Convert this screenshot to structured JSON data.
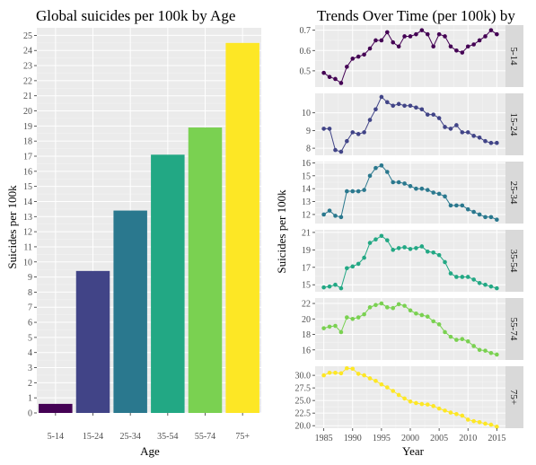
{
  "chart_data": [
    {
      "type": "bar",
      "title": "Global suicides per 100k by Age",
      "xlabel": "Age",
      "ylabel": "Suicides per 100k",
      "categories": [
        "5-14",
        "15-24",
        "25-34",
        "35-54",
        "55-74",
        "75+"
      ],
      "values": [
        0.6,
        9.4,
        13.4,
        17.1,
        18.9,
        24.5
      ],
      "colors": [
        "#440154",
        "#414487",
        "#2a788e",
        "#22a884",
        "#7ad151",
        "#fde725"
      ],
      "ylim": [
        0,
        25.5
      ],
      "yticks": [
        0,
        1,
        2,
        3,
        4,
        5,
        6,
        7,
        8,
        9,
        10,
        11,
        12,
        13,
        14,
        15,
        16,
        17,
        18,
        19,
        20,
        21,
        22,
        23,
        24,
        25
      ],
      "grid": true
    },
    {
      "type": "line",
      "title": "Trends Over Time (per 100k) by",
      "xlabel": "Year",
      "ylabel": "Suicides per 100k",
      "x": [
        1985,
        1986,
        1987,
        1988,
        1989,
        1990,
        1991,
        1992,
        1993,
        1994,
        1995,
        1996,
        1997,
        1998,
        1999,
        2000,
        2001,
        2002,
        2003,
        2004,
        2005,
        2006,
        2007,
        2008,
        2009,
        2010,
        2011,
        2012,
        2013,
        2014,
        2015
      ],
      "xticks": [
        1985,
        1990,
        1995,
        2000,
        2005,
        2010,
        2015
      ],
      "xlim": [
        1983.5,
        2016.5
      ],
      "grid": true,
      "series": [
        {
          "name": "5-14",
          "color": "#440154",
          "values": [
            0.49,
            0.47,
            0.46,
            0.44,
            0.52,
            0.56,
            0.57,
            0.58,
            0.61,
            0.65,
            0.65,
            0.69,
            0.64,
            0.62,
            0.67,
            0.67,
            0.68,
            0.7,
            0.68,
            0.62,
            0.68,
            0.67,
            0.62,
            0.6,
            0.59,
            0.62,
            0.63,
            0.65,
            0.67,
            0.7,
            0.68
          ],
          "ylim": [
            0.42,
            0.725
          ],
          "yticks": [
            0.5,
            0.6,
            0.7
          ],
          "ytick_labels": [
            "0.5",
            "0.6",
            "0.7"
          ]
        },
        {
          "name": "15-24",
          "color": "#414487",
          "values": [
            9.1,
            9.1,
            7.9,
            7.8,
            8.4,
            8.9,
            8.8,
            8.9,
            9.6,
            10.2,
            10.9,
            10.6,
            10.4,
            10.5,
            10.4,
            10.4,
            10.3,
            10.2,
            9.9,
            9.9,
            9.7,
            9.2,
            9.1,
            9.3,
            8.9,
            8.9,
            8.7,
            8.6,
            8.4,
            8.3,
            8.3
          ],
          "ylim": [
            7.6,
            11.1
          ],
          "yticks": [
            8,
            9,
            10
          ],
          "ytick_labels": [
            "8",
            "9",
            "10"
          ]
        },
        {
          "name": "25-34",
          "color": "#2a788e",
          "values": [
            12.0,
            12.3,
            11.9,
            11.8,
            13.8,
            13.8,
            13.8,
            13.9,
            15.0,
            15.6,
            15.8,
            15.3,
            14.5,
            14.5,
            14.4,
            14.2,
            14.0,
            14.0,
            13.9,
            13.7,
            13.6,
            13.4,
            12.7,
            12.7,
            12.7,
            12.4,
            12.2,
            12.0,
            11.8,
            11.8,
            11.6
          ],
          "ylim": [
            11.3,
            16.1
          ],
          "yticks": [
            12,
            13,
            14,
            15,
            16
          ],
          "ytick_labels": [
            "12",
            "13",
            "14",
            "15",
            "16"
          ]
        },
        {
          "name": "35-54",
          "color": "#22a884",
          "values": [
            14.7,
            14.8,
            15.0,
            14.6,
            16.9,
            17.1,
            17.4,
            18.1,
            19.8,
            20.2,
            20.6,
            20.1,
            19.0,
            19.2,
            19.3,
            19.1,
            19.2,
            19.4,
            18.8,
            18.7,
            18.4,
            17.6,
            16.3,
            15.9,
            15.9,
            15.9,
            15.6,
            15.2,
            15.0,
            14.8,
            14.6
          ],
          "ylim": [
            14.2,
            21.3
          ],
          "yticks": [
            15,
            17,
            19,
            21
          ],
          "ytick_labels": [
            "15",
            "17",
            "19",
            "21"
          ]
        },
        {
          "name": "55-74",
          "color": "#7ad151",
          "values": [
            18.8,
            19.0,
            19.1,
            18.3,
            20.2,
            20.0,
            20.2,
            20.6,
            21.5,
            21.8,
            22.0,
            21.5,
            21.4,
            21.9,
            21.7,
            21.1,
            20.7,
            20.5,
            20.3,
            19.7,
            19.3,
            18.3,
            17.7,
            17.3,
            17.4,
            17.1,
            16.5,
            16.0,
            15.9,
            15.6,
            15.4
          ],
          "ylim": [
            14.7,
            22.7
          ],
          "yticks": [
            16,
            18,
            20,
            22
          ],
          "ytick_labels": [
            "16",
            "18",
            "20",
            "22"
          ]
        },
        {
          "name": "75+",
          "color": "#fde725",
          "values": [
            30.0,
            30.5,
            30.5,
            30.4,
            31.4,
            31.3,
            30.3,
            30.0,
            29.4,
            28.9,
            28.2,
            27.6,
            26.9,
            26.1,
            25.4,
            24.8,
            24.5,
            24.3,
            24.2,
            23.9,
            23.4,
            23.0,
            22.6,
            22.3,
            22.0,
            21.2,
            20.9,
            20.7,
            20.4,
            20.2,
            19.8
          ],
          "ylim": [
            19.5,
            31.8
          ],
          "yticks": [
            20,
            22.5,
            25,
            27.5,
            30
          ],
          "ytick_labels": [
            "20.0",
            "22.5",
            "25.0",
            "27.5",
            "30.0"
          ]
        }
      ]
    }
  ]
}
